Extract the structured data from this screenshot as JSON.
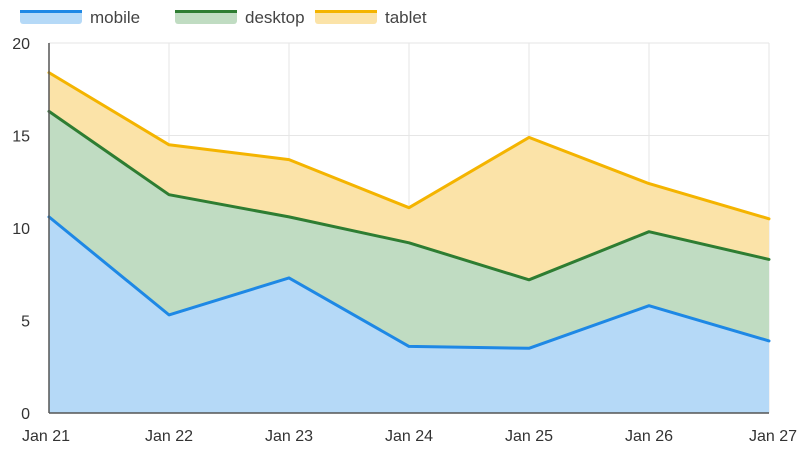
{
  "chart_data": {
    "type": "area",
    "stacked": true,
    "categories": [
      "Jan 21",
      "Jan 22",
      "Jan 23",
      "Jan 24",
      "Jan 25",
      "Jan 26",
      "Jan 27"
    ],
    "series": [
      {
        "name": "mobile",
        "values": [
          10.6,
          5.3,
          7.3,
          3.6,
          3.5,
          5.8,
          3.9
        ],
        "line_color": "#1e88e5",
        "fill_color": "#b5d9f7"
      },
      {
        "name": "desktop",
        "values": [
          5.7,
          6.5,
          3.3,
          5.6,
          3.7,
          4.0,
          4.4
        ],
        "line_color": "#2e7d32",
        "fill_color": "#c0dcc2"
      },
      {
        "name": "tablet",
        "values": [
          2.1,
          2.7,
          3.1,
          1.9,
          7.7,
          2.6,
          2.2
        ],
        "line_color": "#f4b400",
        "fill_color": "#fbe3a8"
      }
    ],
    "y_ticks": [
      "0",
      "5",
      "10",
      "15",
      "20"
    ],
    "ylim": [
      0,
      20
    ],
    "grid": true,
    "legend_position": "top-left",
    "colors": {
      "grid": "#e6e6e6",
      "axis": "#555555"
    }
  }
}
